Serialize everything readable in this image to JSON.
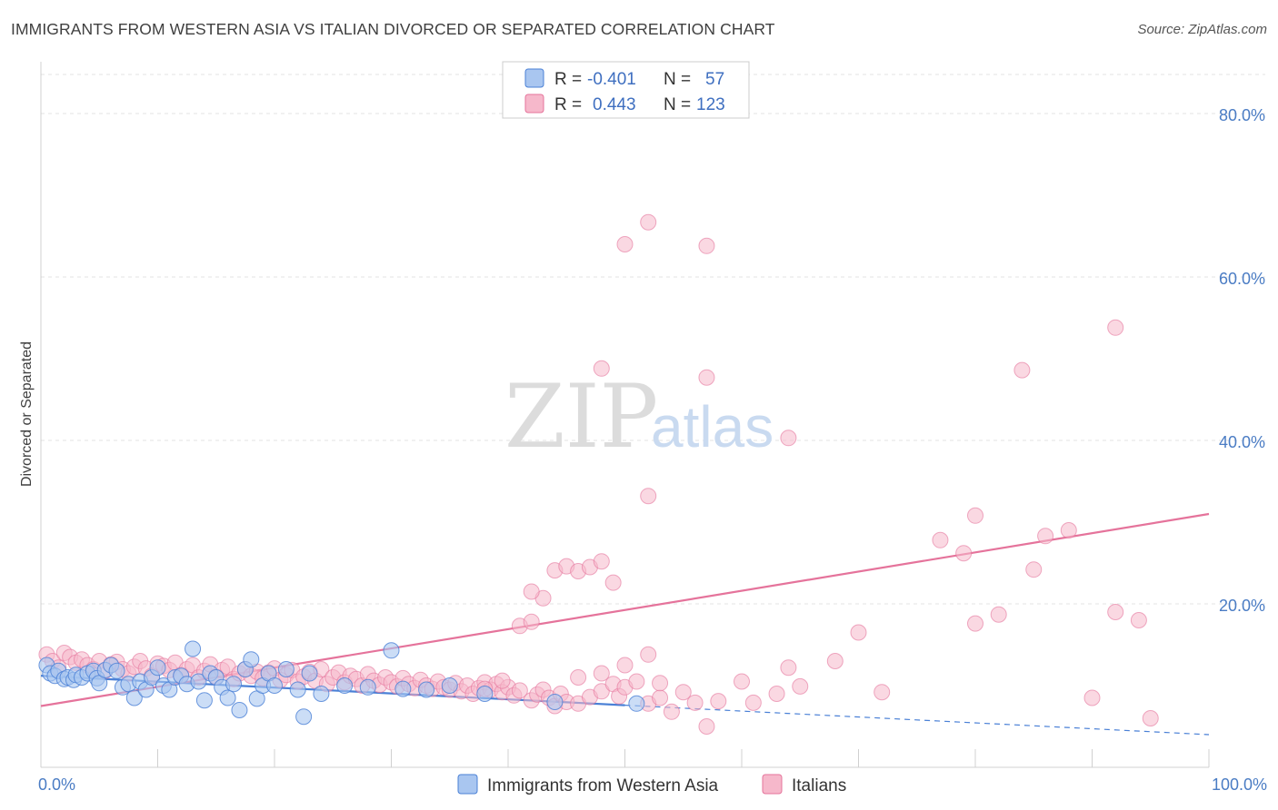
{
  "title": "IMMIGRANTS FROM WESTERN ASIA VS ITALIAN DIVORCED OR SEPARATED CORRELATION CHART",
  "source": "Source: ZipAtlas.com",
  "watermark": {
    "zip": "ZIP",
    "atlas": "atlas"
  },
  "legend": {
    "rows": [
      {
        "r_label": "R =",
        "r_value": "-0.401",
        "n_label": "N =",
        "n_value": "57",
        "color": "#a9c6f0"
      },
      {
        "r_label": "R =",
        "r_value": "0.443",
        "n_label": "N =",
        "n_value": "123",
        "color": "#f6b8cb"
      }
    ]
  },
  "chart_data": {
    "type": "scatter",
    "title": "IMMIGRANTS FROM WESTERN ASIA VS ITALIAN DIVORCED OR SEPARATED CORRELATION CHART",
    "xlabel": "",
    "ylabel": "Divorced or Separated",
    "xlim": [
      0,
      100
    ],
    "ylim": [
      0,
      85
    ],
    "x_tick_labels": [
      "0.0%",
      "100.0%"
    ],
    "y_ticks": [
      20,
      40,
      60,
      80
    ],
    "y_tick_labels": [
      "20.0%",
      "40.0%",
      "60.0%",
      "80.0%"
    ],
    "grid": true,
    "legend_position": "top-center",
    "series": [
      {
        "name": "Immigrants from Western Asia",
        "color": "#4a80d6",
        "fill": "#a9c6f0",
        "trend": {
          "x0": 0,
          "y0": 11.2,
          "x1": 100,
          "y1": 4.0,
          "solid_until": 50
        },
        "points": [
          [
            0.5,
            12.5
          ],
          [
            0.8,
            11.5
          ],
          [
            1.2,
            11.2
          ],
          [
            1.5,
            11.8
          ],
          [
            2,
            10.8
          ],
          [
            2.3,
            11.0
          ],
          [
            2.8,
            10.7
          ],
          [
            3,
            11.3
          ],
          [
            3.5,
            11.0
          ],
          [
            4,
            11.5
          ],
          [
            4.5,
            11.8
          ],
          [
            4.8,
            10.9
          ],
          [
            5,
            10.3
          ],
          [
            5.5,
            11.9
          ],
          [
            6,
            12.5
          ],
          [
            6.5,
            11.8
          ],
          [
            7,
            9.8
          ],
          [
            7.5,
            10.2
          ],
          [
            8,
            8.5
          ],
          [
            8.5,
            10.5
          ],
          [
            9,
            9.5
          ],
          [
            9.5,
            11.0
          ],
          [
            10,
            12.2
          ],
          [
            10.5,
            10.0
          ],
          [
            11,
            9.5
          ],
          [
            11.5,
            11.0
          ],
          [
            12,
            11.2
          ],
          [
            12.5,
            10.2
          ],
          [
            13,
            14.5
          ],
          [
            13.5,
            10.5
          ],
          [
            14,
            8.2
          ],
          [
            14.5,
            11.5
          ],
          [
            15,
            11.0
          ],
          [
            15.5,
            9.8
          ],
          [
            16,
            8.5
          ],
          [
            16.5,
            10.2
          ],
          [
            17,
            7.0
          ],
          [
            17.5,
            12.0
          ],
          [
            18,
            13.2
          ],
          [
            18.5,
            8.4
          ],
          [
            19,
            10.0
          ],
          [
            19.5,
            11.5
          ],
          [
            20,
            10.0
          ],
          [
            21,
            12.0
          ],
          [
            22,
            9.5
          ],
          [
            22.5,
            6.2
          ],
          [
            23,
            11.5
          ],
          [
            24,
            9.0
          ],
          [
            26,
            10.0
          ],
          [
            28,
            9.8
          ],
          [
            30,
            14.3
          ],
          [
            31,
            9.6
          ],
          [
            33,
            9.5
          ],
          [
            35,
            10.0
          ],
          [
            38,
            9.0
          ],
          [
            44,
            8.0
          ],
          [
            51,
            7.8
          ]
        ]
      },
      {
        "name": "Italians",
        "color": "#e5739b",
        "fill": "#f6b8cb",
        "trend": {
          "x0": 0,
          "y0": 7.5,
          "x1": 100,
          "y1": 31.0
        },
        "points": [
          [
            0.5,
            13.8
          ],
          [
            1,
            13.0
          ],
          [
            1.5,
            12.2
          ],
          [
            2,
            14.0
          ],
          [
            2.5,
            13.5
          ],
          [
            3,
            12.8
          ],
          [
            3.5,
            13.2
          ],
          [
            4,
            12.5
          ],
          [
            4.5,
            12.0
          ],
          [
            5,
            13.0
          ],
          [
            5.5,
            11.8
          ],
          [
            6,
            12.6
          ],
          [
            6.5,
            12.9
          ],
          [
            7,
            12.0
          ],
          [
            7.5,
            11.5
          ],
          [
            8,
            12.3
          ],
          [
            8.5,
            13.0
          ],
          [
            9,
            12.1
          ],
          [
            9.5,
            11.2
          ],
          [
            10,
            12.7
          ],
          [
            10.5,
            12.4
          ],
          [
            11,
            11.9
          ],
          [
            11.5,
            12.8
          ],
          [
            12,
            11.3
          ],
          [
            12.5,
            12.0
          ],
          [
            13,
            12.5
          ],
          [
            13.5,
            11.0
          ],
          [
            14,
            11.8
          ],
          [
            14.5,
            12.6
          ],
          [
            15,
            11.1
          ],
          [
            15.5,
            11.9
          ],
          [
            16,
            12.3
          ],
          [
            16.5,
            10.8
          ],
          [
            17,
            11.5
          ],
          [
            17.5,
            12.0
          ],
          [
            18,
            11.2
          ],
          [
            18.5,
            11.7
          ],
          [
            19,
            10.9
          ],
          [
            19.5,
            11.6
          ],
          [
            20,
            12.1
          ],
          [
            20.5,
            10.7
          ],
          [
            21,
            11.3
          ],
          [
            21.5,
            11.9
          ],
          [
            22,
            10.5
          ],
          [
            22.5,
            11.1
          ],
          [
            23,
            11.7
          ],
          [
            23.5,
            10.6
          ],
          [
            24,
            12.0
          ],
          [
            24.5,
            10.2
          ],
          [
            25,
            11.0
          ],
          [
            25.5,
            11.6
          ],
          [
            26,
            10.4
          ],
          [
            26.5,
            11.2
          ],
          [
            27,
            10.8
          ],
          [
            27.5,
            10.0
          ],
          [
            28,
            11.4
          ],
          [
            28.5,
            10.6
          ],
          [
            29,
            10.1
          ],
          [
            29.5,
            11.0
          ],
          [
            30,
            10.4
          ],
          [
            30.5,
            9.9
          ],
          [
            31,
            10.9
          ],
          [
            31.5,
            10.2
          ],
          [
            32,
            9.7
          ],
          [
            32.5,
            10.7
          ],
          [
            33,
            10.0
          ],
          [
            33.5,
            9.6
          ],
          [
            34,
            10.5
          ],
          [
            34.5,
            9.8
          ],
          [
            35,
            9.5
          ],
          [
            35.5,
            10.3
          ],
          [
            36,
            9.3
          ],
          [
            36.5,
            10.0
          ],
          [
            37,
            9.0
          ],
          [
            37.5,
            9.7
          ],
          [
            38,
            10.4
          ],
          [
            38.5,
            9.5
          ],
          [
            39,
            10.2
          ],
          [
            39.5,
            9.2
          ],
          [
            40,
            9.8
          ],
          [
            40.5,
            8.8
          ],
          [
            41,
            9.4
          ],
          [
            42,
            8.2
          ],
          [
            42.5,
            8.9
          ],
          [
            43,
            9.5
          ],
          [
            43.5,
            8.5
          ],
          [
            44,
            7.5
          ],
          [
            44.5,
            9.0
          ],
          [
            45,
            8.0
          ],
          [
            46,
            7.8
          ],
          [
            46,
            11.0
          ],
          [
            47,
            8.6
          ],
          [
            48,
            9.3
          ],
          [
            48,
            11.5
          ],
          [
            49,
            10.2
          ],
          [
            49.5,
            8.7
          ],
          [
            50,
            9.8
          ],
          [
            50,
            12.5
          ],
          [
            51,
            10.5
          ],
          [
            52,
            7.8
          ],
          [
            52,
            13.8
          ],
          [
            53,
            8.5
          ],
          [
            53,
            10.3
          ],
          [
            54,
            6.8
          ],
          [
            55,
            9.2
          ],
          [
            56,
            7.9
          ],
          [
            57,
            5.0
          ],
          [
            58,
            8.1
          ],
          [
            60,
            10.5
          ],
          [
            61,
            7.9
          ],
          [
            63,
            9.0
          ],
          [
            64,
            12.2
          ],
          [
            65,
            9.9
          ],
          [
            68,
            13.0
          ],
          [
            70,
            16.5
          ],
          [
            72,
            9.2
          ],
          [
            80,
            17.6
          ],
          [
            82,
            18.7
          ],
          [
            85,
            24.2
          ],
          [
            86,
            28.3
          ],
          [
            88,
            29.0
          ],
          [
            90,
            8.5
          ],
          [
            92,
            19.0
          ],
          [
            94,
            18.0
          ],
          [
            95,
            6.0
          ],
          [
            38,
            9.6
          ],
          [
            39.5,
            10.6
          ]
        ]
      }
    ],
    "extra_points_italians": [
      [
        43,
        20.7
      ],
      [
        42,
        21.5
      ],
      [
        44,
        24.1
      ],
      [
        45,
        24.6
      ],
      [
        46,
        24.0
      ],
      [
        47,
        24.5
      ],
      [
        48,
        25.2
      ],
      [
        49,
        22.6
      ],
      [
        41,
        17.3
      ],
      [
        42,
        17.8
      ],
      [
        52,
        33.2
      ],
      [
        48,
        48.8
      ],
      [
        57,
        47.7
      ],
      [
        50,
        64.0
      ],
      [
        52,
        66.7
      ],
      [
        57,
        63.8
      ],
      [
        64,
        40.3
      ],
      [
        77,
        27.8
      ],
      [
        79,
        26.2
      ],
      [
        80,
        30.8
      ],
      [
        84,
        48.6
      ],
      [
        92,
        53.8
      ]
    ]
  },
  "bottom_legend": [
    {
      "label": "Immigrants from Western Asia",
      "color": "#a9c6f0"
    },
    {
      "label": "Italians",
      "color": "#f6b8cb"
    }
  ]
}
